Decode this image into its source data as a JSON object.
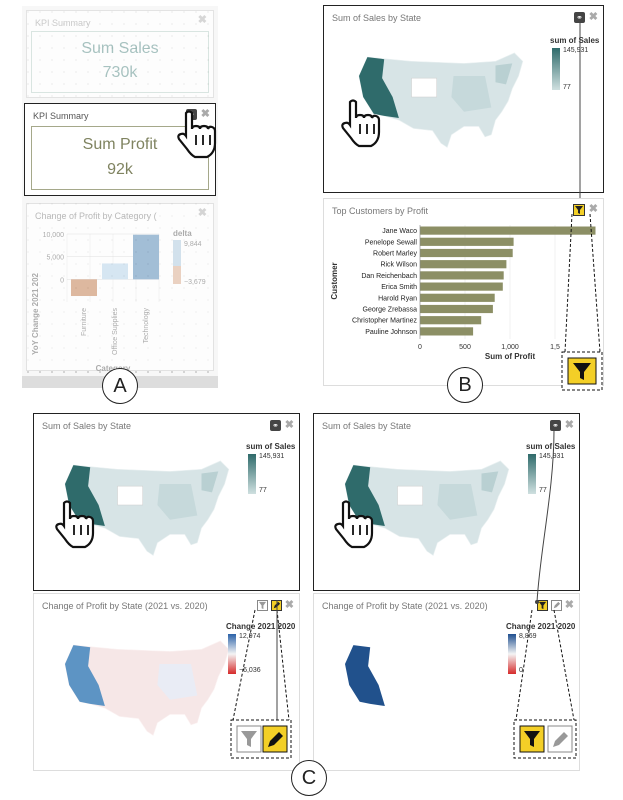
{
  "panelA": {
    "kpi1": {
      "title": "KPI Summary",
      "label": "Sum Sales",
      "value": "730k"
    },
    "kpi2": {
      "title": "KPI Summary",
      "label": "Sum Profit",
      "value": "92k"
    },
    "chart": {
      "title": "Change of Profit by Category (",
      "legend_title": "delta",
      "legend_max": "9,844",
      "legend_min": "−3,679",
      "ylabel": "YoY Change 2021 202",
      "xlabel": "Category"
    },
    "label": "A"
  },
  "panelB": {
    "map": {
      "title": "Sum of Sales by State",
      "legend_title": "sum of Sales",
      "legend_max": "145,931",
      "legend_min": "77"
    },
    "customers": {
      "title": "Top Customers by Profit",
      "ylabel": "Customer",
      "xlabel": "Sum of Profit"
    },
    "label": "B"
  },
  "panelC": {
    "left_map": {
      "title": "Sum of Sales by State",
      "legend_title": "sum of Sales",
      "legend_max": "145,931",
      "legend_min": "77"
    },
    "left_change": {
      "title": "Change of Profit by State (2021 vs. 2020)",
      "legend_title": "Change 2021 2020",
      "legend_max": "12,974",
      "legend_min": "−6,036"
    },
    "right_map": {
      "title": "Sum of Sales by State",
      "legend_title": "sum of Sales",
      "legend_max": "145,931",
      "legend_min": "77"
    },
    "right_change": {
      "title": "Change of Profit by State (2021 vs. 2020)",
      "legend_title": "Change 2021 2020",
      "legend_max": "8,869",
      "legend_min": "0"
    },
    "label": "C"
  },
  "chart_data": [
    {
      "type": "bar",
      "title": "Change of Profit by Category (",
      "categories": [
        "Furniture",
        "Office Supplies",
        "Technology"
      ],
      "values": [
        -3679,
        3500,
        9844
      ],
      "ylabel": "YoY Change 2021 202",
      "xlabel": "Category",
      "ylim": [
        -5000,
        10000
      ],
      "yticks": [
        "10,000",
        "5,000",
        "0"
      ]
    },
    {
      "type": "bar",
      "title": "Top Customers by Profit",
      "orientation": "horizontal",
      "categories": [
        "Jane Waco",
        "Penelope Sewall",
        "Robert Marley",
        "Rick Wilson",
        "Dan Reichenbach",
        "Erica Smith",
        "Harold Ryan",
        "George Zrebassa",
        "Christopher Martinez",
        "Pauline Johnson"
      ],
      "values": [
        1950,
        1040,
        1030,
        960,
        930,
        920,
        830,
        810,
        680,
        590
      ],
      "xlabel": "Sum of Profit",
      "ylabel": "Customer",
      "xticks": [
        "0",
        "500",
        "1,000",
        "1,5"
      ],
      "color": "#8c8f65"
    }
  ]
}
